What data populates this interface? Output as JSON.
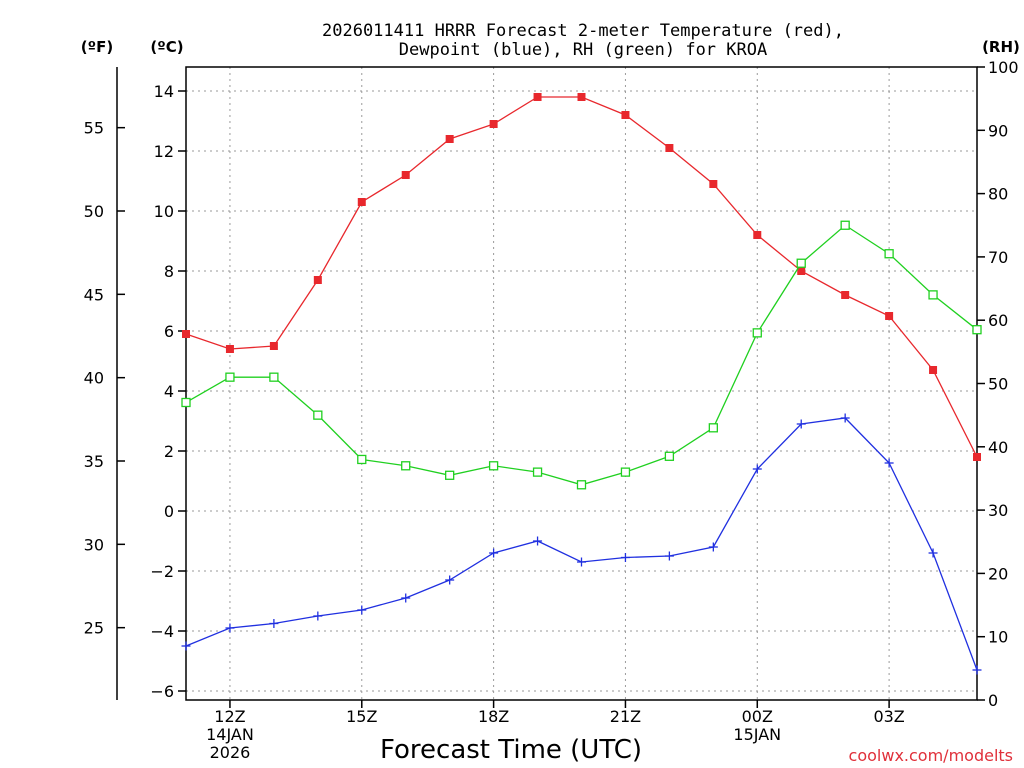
{
  "chart_data": {
    "type": "line",
    "title_line1": "2026011411 HRRR Forecast 2-meter Temperature (red),",
    "title_line2": "Dewpoint (blue), RH (green) for KROA",
    "xlabel": "Forecast Time (UTC)",
    "credit": "coolwx.com/modelts",
    "unit_f": "(ºF)",
    "unit_c": "(ºC)",
    "unit_rh": "(RH)",
    "x_hours": [
      11,
      12,
      13,
      14,
      15,
      16,
      17,
      18,
      19,
      20,
      21,
      22,
      23,
      24,
      25,
      26,
      27,
      28,
      29
    ],
    "x_ticks": [
      {
        "hour": 12,
        "lines": [
          "12Z",
          "14JAN",
          "2026"
        ]
      },
      {
        "hour": 15,
        "lines": [
          "15Z"
        ]
      },
      {
        "hour": 18,
        "lines": [
          "18Z"
        ]
      },
      {
        "hour": 21,
        "lines": [
          "21Z"
        ]
      },
      {
        "hour": 24,
        "lines": [
          "00Z",
          "15JAN"
        ]
      },
      {
        "hour": 27,
        "lines": [
          "03Z"
        ]
      }
    ],
    "xlim": [
      11,
      29
    ],
    "ylim_c": [
      -6.3,
      14.8
    ],
    "yticks_c": [
      -6,
      -4,
      -2,
      0,
      2,
      4,
      6,
      8,
      10,
      12,
      14
    ],
    "yticks_f": [
      25,
      30,
      35,
      40,
      45,
      50,
      55
    ],
    "ylim_rh": [
      0,
      100
    ],
    "yticks_rh": [
      0,
      10,
      20,
      30,
      40,
      50,
      60,
      70,
      80,
      90,
      100
    ],
    "series": [
      {
        "name": "Temperature",
        "color": "#e8282d",
        "marker": "filled-square",
        "axis": "c",
        "values": [
          5.9,
          5.4,
          5.5,
          7.7,
          10.3,
          11.2,
          12.4,
          12.9,
          13.8,
          13.8,
          13.2,
          12.1,
          10.9,
          9.2,
          8.0,
          7.2,
          6.5,
          4.7,
          1.8
        ]
      },
      {
        "name": "Dewpoint",
        "color": "#2030e0",
        "marker": "plus",
        "axis": "c",
        "values": [
          -4.5,
          -3.9,
          -3.75,
          -3.5,
          -3.3,
          -2.9,
          -2.3,
          -1.4,
          -1.0,
          -1.7,
          -1.55,
          -1.5,
          -1.2,
          1.4,
          2.9,
          3.1,
          1.6,
          -1.4,
          -5.3
        ]
      },
      {
        "name": "RH",
        "color": "#20d020",
        "marker": "open-square",
        "axis": "rh",
        "values": [
          47,
          51,
          51,
          45,
          38,
          37,
          35.5,
          37,
          36,
          34,
          36,
          38.5,
          43,
          58,
          69,
          75,
          70.5,
          64,
          58.5
        ]
      }
    ]
  }
}
